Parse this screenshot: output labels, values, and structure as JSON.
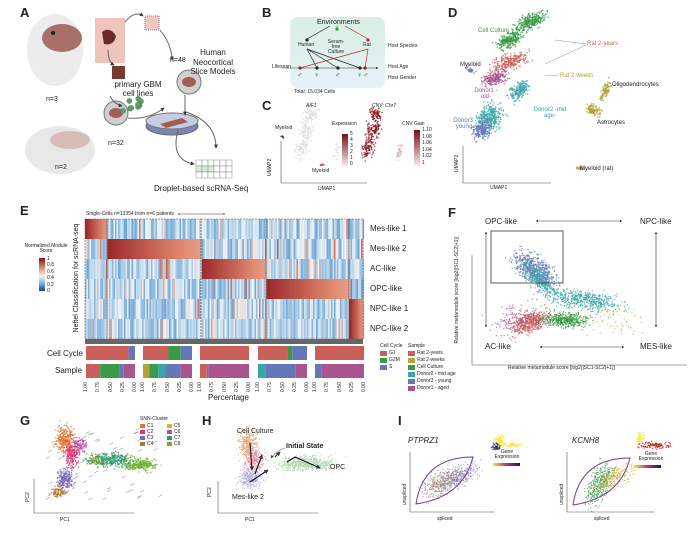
{
  "panels": {
    "a": "A",
    "b": "B",
    "c": "C",
    "d": "D",
    "e": "E",
    "f": "F",
    "g": "G",
    "h": "H",
    "i": "I"
  },
  "panel_a": {
    "n_human": "n=3",
    "n_rat": "n=2",
    "n_rat_slices": "n=32",
    "n_human_slices": "n=48",
    "slice_models": "Human Neocortical Slice Models",
    "cell_lines": "primary GBM cell lines",
    "sequencing": "Droplet-based scRNA-Seq"
  },
  "panel_b": {
    "environments": "Environments",
    "human": "Human",
    "serum_free": "Serum-free Culture",
    "rat": "Rat",
    "host_species": "Host Species",
    "lifespan": "Lifespan",
    "host_age": "Host Age",
    "host_gender": "Host Gender",
    "total": "Total: 15,034 Cells"
  },
  "panel_c": {
    "gene": "AIF1",
    "cnv": "CNV: Chr7",
    "myeloid_1": "Myeloid",
    "myeloid_2": "Myeloid",
    "expression": "Expression",
    "expression_ticks": [
      "5",
      "4",
      "3",
      "2",
      "1",
      "0"
    ],
    "cnv_gain": "CNV Gain",
    "cnv_ticks": [
      "1.10",
      "1.08",
      "1.06",
      "1.04",
      "1.02",
      "1"
    ],
    "xlabel": "UMAP1",
    "ylabel": "UMAP2"
  },
  "panel_d": {
    "labels": {
      "cell_culture": "Cell Culture",
      "rat_2y": "Rat 2-years",
      "rat_2w": "Rat 2-weeks",
      "myeloid": "Myeloid",
      "donor1": "Donor1 -old-",
      "donor2": "Donor2 -mid age-",
      "donor3": "Donor3 -young-",
      "oligo": "Oligodendrocytes",
      "astro": "Astrocytes",
      "myeloid_rat": "Myeloid (rat)"
    },
    "xlabel": "UMAP1",
    "ylabel": "UMAP2"
  },
  "panel_e": {
    "header": "Single-Cells n=13354 from n=6 patients",
    "ylabel": "Neftel Classification for scRNA-seq",
    "colorbar_title": "Normalized Module Score",
    "colorbar_ticks": [
      "1",
      "0.8",
      "0.6",
      "0.4",
      "0.2",
      "0"
    ],
    "rows": [
      "Mes-like 1",
      "Mes-like 2",
      "AC-like",
      "OPC-like",
      "NPC-like 1",
      "NPC-like 2"
    ],
    "cell_cycle_label": "Cell Cycle",
    "sample_label": "Sample",
    "xlabel": "Percentage",
    "ticks": [
      "1.00",
      "0.75",
      "0.50",
      "0.25",
      "0.00"
    ],
    "legend_cc_title": "Cell Cycle",
    "legend_sample_title": "Sample",
    "cell_cycle_legend": [
      {
        "name": "G1",
        "color": "#c9605a"
      },
      {
        "name": "G2M",
        "color": "#3a9a48"
      },
      {
        "name": "S",
        "color": "#6478b8"
      }
    ],
    "sample_legend": [
      {
        "name": "Rat 2-years",
        "color": "#c9605a"
      },
      {
        "name": "Rat 2-weeks",
        "color": "#b2a33a"
      },
      {
        "name": "Cell Culture",
        "color": "#3a9a48"
      },
      {
        "name": "Donor2 - mid age",
        "color": "#3aa5a8"
      },
      {
        "name": "Donor3 - young",
        "color": "#6478b8"
      },
      {
        "name": "Donor1 - aged",
        "color": "#a85590"
      }
    ],
    "cell_cycle_fractions": [
      [
        0.87,
        0,
        0.13
      ],
      [
        0.52,
        0.25,
        0.23
      ],
      [
        1,
        0,
        0
      ],
      [
        0.6,
        0.1,
        0.3
      ],
      [
        1,
        0,
        0
      ]
    ],
    "sample_fractions": [
      [
        0.29,
        0,
        0.4,
        0,
        0.08,
        0.23
      ],
      [
        0,
        0.13,
        0.18,
        0.14,
        0.31,
        0.24
      ],
      [
        0.14,
        0,
        0,
        0,
        0.03,
        0.83
      ],
      [
        0,
        0,
        0,
        0.15,
        0.62,
        0.23
      ],
      [
        0,
        0,
        0,
        0,
        0.13,
        0.87
      ]
    ]
  },
  "panel_f": {
    "opc": "OPC-like",
    "npc": "NPC-like",
    "ac": "AC-like",
    "mes": "MES-like",
    "xlabel": "Relative metamodule score [log2(|SC1-SC2|+1)]",
    "ylabel": "Relative metamodule score [log2(|SC1-SC2|+1)]"
  },
  "panel_g": {
    "legend_title": "SNN-Cluster",
    "clusters": [
      {
        "name": "C1",
        "color": "#e0752e"
      },
      {
        "name": "C2",
        "color": "#d8387a"
      },
      {
        "name": "C3",
        "color": "#7a6ab8"
      },
      {
        "name": "C4",
        "color": "#b07a2a"
      },
      {
        "name": "C5",
        "color": "#d8b030"
      },
      {
        "name": "C6",
        "color": "#b84ab0"
      },
      {
        "name": "C7",
        "color": "#2a9a6a"
      },
      {
        "name": "C8",
        "color": "#70b030"
      }
    ],
    "xlabel": "PC1",
    "ylabel": "PC2"
  },
  "panel_h": {
    "cell_culture": "Cell Culture",
    "initial_state": "Initial State",
    "opc": "OPC",
    "mes2": "Mes-like 2",
    "xlabel": "PC1",
    "ylabel": "PC2"
  },
  "panel_i": {
    "gene1": "PTPRZ1",
    "gene2": "KCNH8",
    "gene_expression": "Gene Expression",
    "xlabel": "spliced",
    "ylabel": "unspliced"
  }
}
